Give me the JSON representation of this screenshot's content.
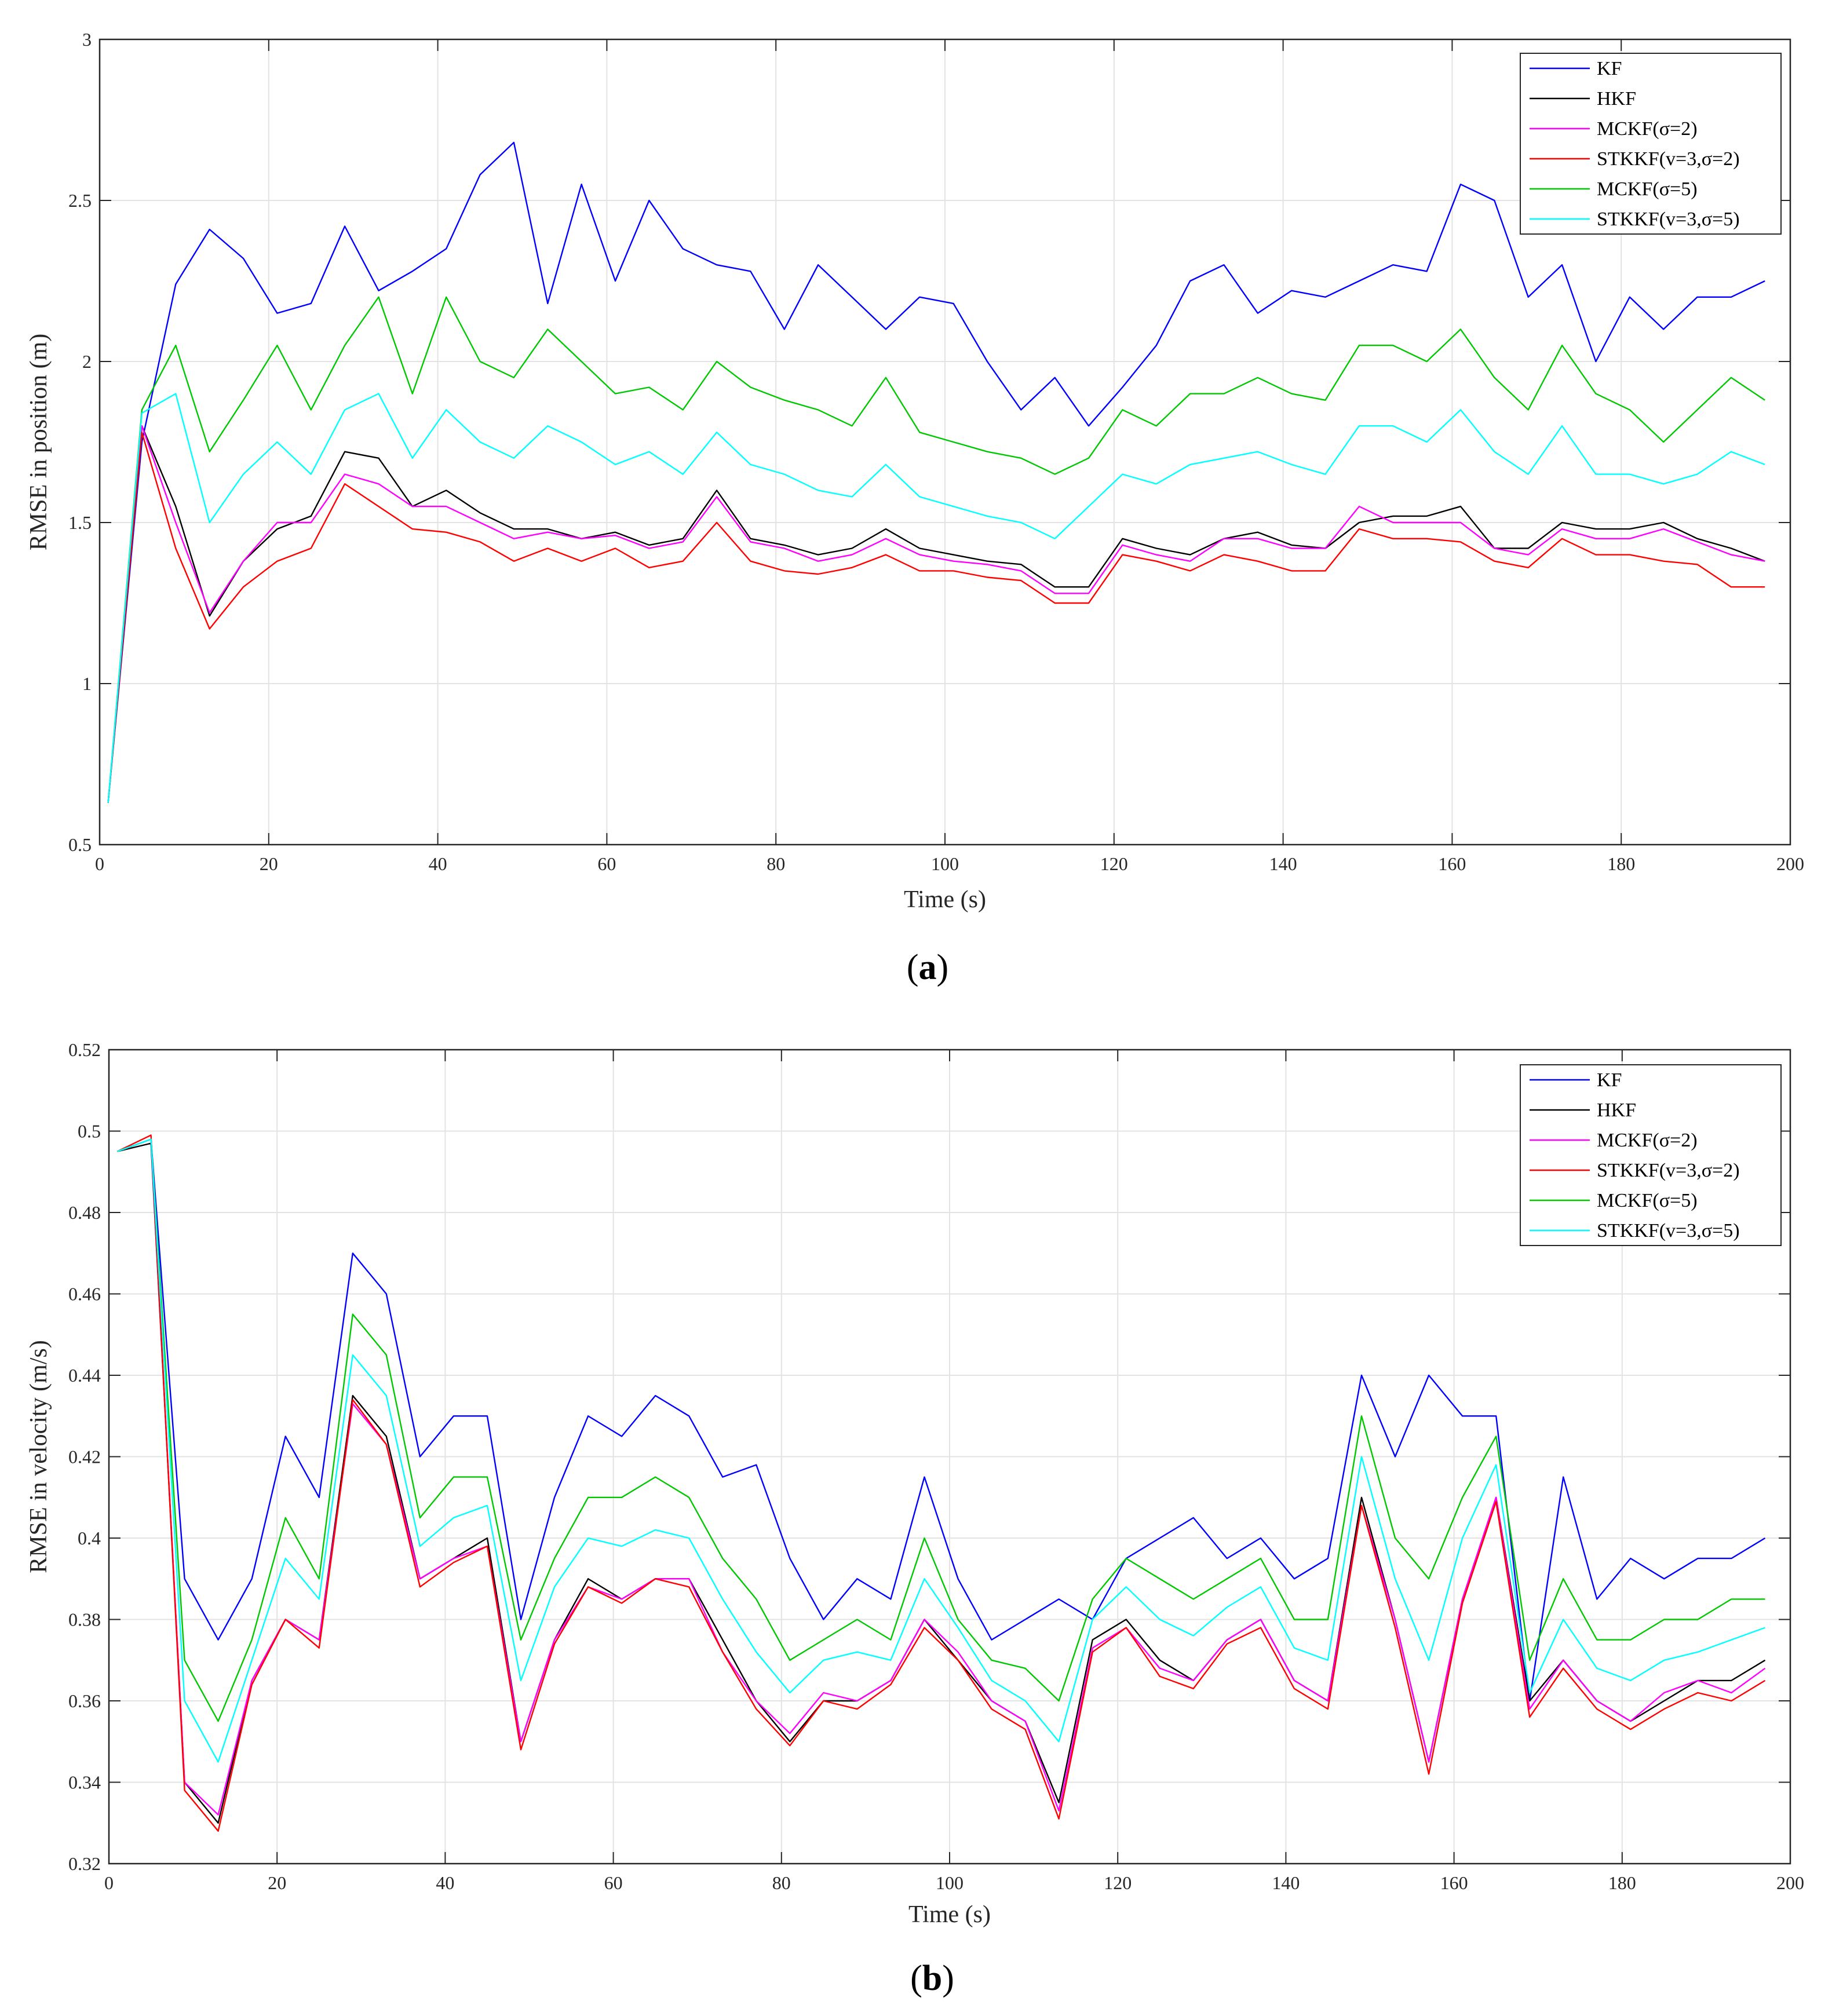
{
  "chart_data": [
    {
      "type": "line",
      "panel_label": "a",
      "xlabel": "Time (s)",
      "ylabel": "RMSE in position (m)",
      "xlim": [
        0,
        200
      ],
      "ylim": [
        0.5,
        3
      ],
      "xticks": [
        0,
        20,
        40,
        60,
        80,
        100,
        120,
        140,
        160,
        180,
        200
      ],
      "yticks": [
        0.5,
        1,
        1.5,
        2,
        2.5,
        3
      ],
      "grid": true,
      "legend_position": "top-right",
      "x_start": 1,
      "x_step": 4,
      "series": [
        {
          "name": "KF",
          "color": "#0000ff",
          "values": [
            0.63,
            1.75,
            2.24,
            2.41,
            2.32,
            2.15,
            2.18,
            2.42,
            2.22,
            2.28,
            2.35,
            2.58,
            2.68,
            2.18,
            2.55,
            2.25,
            2.5,
            2.35,
            2.3,
            2.28,
            2.1,
            2.3,
            2.2,
            2.1,
            2.2,
            2.18,
            2.0,
            1.85,
            1.95,
            1.8,
            1.92,
            2.05,
            2.25,
            2.3,
            2.15,
            2.22,
            2.2,
            2.25,
            2.3,
            2.28,
            2.55,
            2.5,
            2.2,
            2.3,
            2.0,
            2.2,
            2.1,
            2.2,
            2.2,
            2.25
          ]
        },
        {
          "name": "HKF",
          "color": "#000000",
          "values": [
            0.63,
            1.8,
            1.55,
            1.21,
            1.38,
            1.48,
            1.52,
            1.72,
            1.7,
            1.55,
            1.6,
            1.53,
            1.48,
            1.48,
            1.45,
            1.47,
            1.43,
            1.45,
            1.6,
            1.45,
            1.43,
            1.4,
            1.42,
            1.48,
            1.42,
            1.4,
            1.38,
            1.37,
            1.3,
            1.3,
            1.45,
            1.42,
            1.4,
            1.45,
            1.47,
            1.43,
            1.42,
            1.5,
            1.52,
            1.52,
            1.55,
            1.42,
            1.42,
            1.5,
            1.48,
            1.48,
            1.5,
            1.45,
            1.42,
            1.38
          ]
        },
        {
          "name": "MCKF(σ=2)",
          "color": "#ff00ff",
          "values": [
            0.63,
            1.8,
            1.5,
            1.22,
            1.38,
            1.5,
            1.5,
            1.65,
            1.62,
            1.55,
            1.55,
            1.5,
            1.45,
            1.47,
            1.45,
            1.46,
            1.42,
            1.44,
            1.58,
            1.44,
            1.42,
            1.38,
            1.4,
            1.45,
            1.4,
            1.38,
            1.37,
            1.35,
            1.28,
            1.28,
            1.43,
            1.4,
            1.38,
            1.45,
            1.45,
            1.42,
            1.42,
            1.55,
            1.5,
            1.5,
            1.5,
            1.42,
            1.4,
            1.48,
            1.45,
            1.45,
            1.48,
            1.44,
            1.4,
            1.38
          ]
        },
        {
          "name": "STKKF(v=3,σ=2)",
          "color": "#ff0000",
          "values": [
            0.63,
            1.78,
            1.42,
            1.17,
            1.3,
            1.38,
            1.42,
            1.62,
            1.55,
            1.48,
            1.47,
            1.44,
            1.38,
            1.42,
            1.38,
            1.42,
            1.36,
            1.38,
            1.5,
            1.38,
            1.35,
            1.34,
            1.36,
            1.4,
            1.35,
            1.35,
            1.33,
            1.32,
            1.25,
            1.25,
            1.4,
            1.38,
            1.35,
            1.4,
            1.38,
            1.35,
            1.35,
            1.48,
            1.45,
            1.45,
            1.44,
            1.38,
            1.36,
            1.45,
            1.4,
            1.4,
            1.38,
            1.37,
            1.3,
            1.3
          ]
        },
        {
          "name": "MCKF(σ=5)",
          "color": "#00c800",
          "values": [
            0.63,
            1.85,
            2.05,
            1.72,
            1.88,
            2.05,
            1.85,
            2.05,
            2.2,
            1.9,
            2.2,
            2.0,
            1.95,
            2.1,
            2.0,
            1.9,
            1.92,
            1.85,
            2.0,
            1.92,
            1.88,
            1.85,
            1.8,
            1.95,
            1.78,
            1.75,
            1.72,
            1.7,
            1.65,
            1.7,
            1.85,
            1.8,
            1.9,
            1.9,
            1.95,
            1.9,
            1.88,
            2.05,
            2.05,
            2.0,
            2.1,
            1.95,
            1.85,
            2.05,
            1.9,
            1.85,
            1.75,
            1.85,
            1.95,
            1.88
          ]
        },
        {
          "name": "STKKF(v=3,σ=5)",
          "color": "#00ffff",
          "values": [
            0.63,
            1.84,
            1.9,
            1.5,
            1.65,
            1.75,
            1.65,
            1.85,
            1.9,
            1.7,
            1.85,
            1.75,
            1.7,
            1.8,
            1.75,
            1.68,
            1.72,
            1.65,
            1.78,
            1.68,
            1.65,
            1.6,
            1.58,
            1.68,
            1.58,
            1.55,
            1.52,
            1.5,
            1.45,
            1.55,
            1.65,
            1.62,
            1.68,
            1.7,
            1.72,
            1.68,
            1.65,
            1.8,
            1.8,
            1.75,
            1.85,
            1.72,
            1.65,
            1.8,
            1.65,
            1.65,
            1.62,
            1.65,
            1.72,
            1.68
          ]
        }
      ]
    },
    {
      "type": "line",
      "panel_label": "b",
      "xlabel": "Time (s)",
      "ylabel": "RMSE in velocity (m/s)",
      "xlim": [
        0,
        200
      ],
      "ylim": [
        0.32,
        0.52
      ],
      "xticks": [
        0,
        20,
        40,
        60,
        80,
        100,
        120,
        140,
        160,
        180,
        200
      ],
      "yticks": [
        0.32,
        0.34,
        0.36,
        0.38,
        0.4,
        0.42,
        0.44,
        0.46,
        0.48,
        0.5,
        0.52
      ],
      "grid": true,
      "legend_position": "top-right",
      "x_start": 1,
      "x_step": 4,
      "series": [
        {
          "name": "KF",
          "color": "#0000ff",
          "values": [
            0.495,
            0.498,
            0.39,
            0.375,
            0.39,
            0.425,
            0.41,
            0.47,
            0.46,
            0.42,
            0.43,
            0.43,
            0.38,
            0.41,
            0.43,
            0.425,
            0.435,
            0.43,
            0.415,
            0.418,
            0.395,
            0.38,
            0.39,
            0.385,
            0.415,
            0.39,
            0.375,
            0.38,
            0.385,
            0.38,
            0.395,
            0.4,
            0.405,
            0.395,
            0.4,
            0.39,
            0.395,
            0.44,
            0.42,
            0.44,
            0.43,
            0.43,
            0.36,
            0.415,
            0.385,
            0.395,
            0.39,
            0.395,
            0.395,
            0.4
          ]
        },
        {
          "name": "HKF",
          "color": "#000000",
          "values": [
            0.495,
            0.497,
            0.34,
            0.33,
            0.365,
            0.38,
            0.375,
            0.435,
            0.425,
            0.39,
            0.395,
            0.4,
            0.35,
            0.375,
            0.39,
            0.385,
            0.39,
            0.39,
            0.375,
            0.36,
            0.35,
            0.36,
            0.36,
            0.365,
            0.38,
            0.37,
            0.36,
            0.355,
            0.335,
            0.375,
            0.38,
            0.37,
            0.365,
            0.375,
            0.38,
            0.365,
            0.36,
            0.41,
            0.38,
            0.345,
            0.385,
            0.41,
            0.36,
            0.37,
            0.36,
            0.355,
            0.36,
            0.365,
            0.365,
            0.37
          ]
        },
        {
          "name": "MCKF(σ=2)",
          "color": "#ff00ff",
          "values": [
            0.495,
            0.498,
            0.34,
            0.332,
            0.365,
            0.38,
            0.375,
            0.433,
            0.423,
            0.39,
            0.395,
            0.398,
            0.35,
            0.375,
            0.388,
            0.385,
            0.39,
            0.39,
            0.372,
            0.36,
            0.352,
            0.362,
            0.36,
            0.365,
            0.38,
            0.372,
            0.36,
            0.355,
            0.333,
            0.373,
            0.378,
            0.368,
            0.365,
            0.375,
            0.38,
            0.365,
            0.36,
            0.408,
            0.38,
            0.345,
            0.385,
            0.41,
            0.358,
            0.37,
            0.36,
            0.355,
            0.362,
            0.365,
            0.362,
            0.368
          ]
        },
        {
          "name": "STKKF(v=3,σ=2)",
          "color": "#ff0000",
          "values": [
            0.495,
            0.499,
            0.338,
            0.328,
            0.364,
            0.38,
            0.373,
            0.434,
            0.423,
            0.388,
            0.394,
            0.398,
            0.348,
            0.374,
            0.388,
            0.384,
            0.39,
            0.388,
            0.372,
            0.358,
            0.349,
            0.36,
            0.358,
            0.364,
            0.378,
            0.37,
            0.358,
            0.353,
            0.331,
            0.372,
            0.378,
            0.366,
            0.363,
            0.374,
            0.378,
            0.363,
            0.358,
            0.408,
            0.378,
            0.342,
            0.384,
            0.409,
            0.356,
            0.368,
            0.358,
            0.353,
            0.358,
            0.362,
            0.36,
            0.365
          ]
        },
        {
          "name": "MCKF(σ=5)",
          "color": "#00c800",
          "values": [
            0.495,
            0.498,
            0.37,
            0.355,
            0.375,
            0.405,
            0.39,
            0.455,
            0.445,
            0.405,
            0.415,
            0.415,
            0.375,
            0.395,
            0.41,
            0.41,
            0.415,
            0.41,
            0.395,
            0.385,
            0.37,
            0.375,
            0.38,
            0.375,
            0.4,
            0.38,
            0.37,
            0.368,
            0.36,
            0.385,
            0.395,
            0.39,
            0.385,
            0.39,
            0.395,
            0.38,
            0.38,
            0.43,
            0.4,
            0.39,
            0.41,
            0.425,
            0.37,
            0.39,
            0.375,
            0.375,
            0.38,
            0.38,
            0.385,
            0.385
          ]
        },
        {
          "name": "STKKF(v=3,σ=5)",
          "color": "#00ffff",
          "values": [
            0.495,
            0.498,
            0.36,
            0.345,
            0.37,
            0.395,
            0.385,
            0.445,
            0.435,
            0.398,
            0.405,
            0.408,
            0.365,
            0.388,
            0.4,
            0.398,
            0.402,
            0.4,
            0.385,
            0.372,
            0.362,
            0.37,
            0.372,
            0.37,
            0.39,
            0.378,
            0.365,
            0.36,
            0.35,
            0.38,
            0.388,
            0.38,
            0.376,
            0.383,
            0.388,
            0.373,
            0.37,
            0.42,
            0.39,
            0.37,
            0.4,
            0.418,
            0.362,
            0.38,
            0.368,
            0.365,
            0.37,
            0.372,
            0.375,
            0.378
          ]
        }
      ]
    }
  ]
}
